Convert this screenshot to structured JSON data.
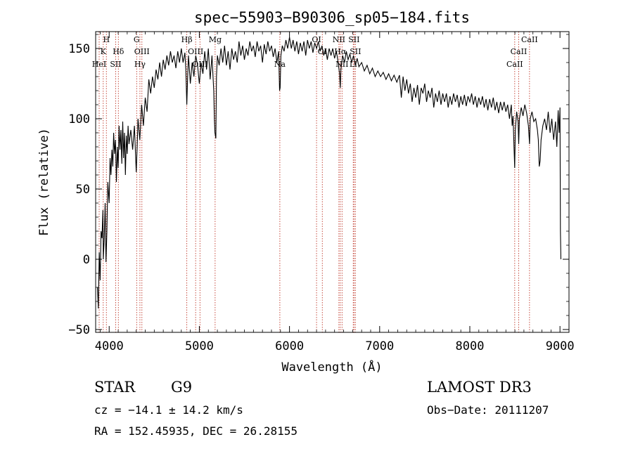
{
  "chart_data": {
    "type": "line",
    "title": "spec−55903−B90306_sp05−184.fits",
    "xlabel": "Wavelength (Å)",
    "ylabel": "Flux (relative)",
    "xlim": [
      3850,
      9100
    ],
    "ylim": [
      -52,
      162
    ],
    "xticks": [
      4000,
      5000,
      6000,
      7000,
      8000,
      9000
    ],
    "xtick_labels": [
      "4000",
      "5000",
      "6000",
      "7000",
      "8000",
      "9000"
    ],
    "yticks": [
      -50,
      0,
      50,
      100,
      150
    ],
    "ytick_labels": [
      "−50",
      "0",
      "50",
      "100",
      "150"
    ],
    "series": [
      {
        "name": "flux",
        "points": [
          [
            3870,
            -20
          ],
          [
            3880,
            -35
          ],
          [
            3890,
            5
          ],
          [
            3900,
            -15
          ],
          [
            3910,
            20
          ],
          [
            3920,
            15
          ],
          [
            3930,
            35
          ],
          [
            3935,
            0
          ],
          [
            3945,
            15
          ],
          [
            3955,
            40
          ],
          [
            3965,
            -2
          ],
          [
            3975,
            20
          ],
          [
            3985,
            55
          ],
          [
            4000,
            40
          ],
          [
            4010,
            72
          ],
          [
            4020,
            60
          ],
          [
            4030,
            78
          ],
          [
            4040,
            66
          ],
          [
            4050,
            90
          ],
          [
            4060,
            75
          ],
          [
            4070,
            85
          ],
          [
            4080,
            55
          ],
          [
            4090,
            80
          ],
          [
            4100,
            65
          ],
          [
            4110,
            95
          ],
          [
            4120,
            78
          ],
          [
            4130,
            92
          ],
          [
            4140,
            68
          ],
          [
            4150,
            98
          ],
          [
            4160,
            72
          ],
          [
            4170,
            90
          ],
          [
            4180,
            60
          ],
          [
            4190,
            88
          ],
          [
            4200,
            75
          ],
          [
            4210,
            95
          ],
          [
            4220,
            82
          ],
          [
            4240,
            92
          ],
          [
            4260,
            78
          ],
          [
            4280,
            95
          ],
          [
            4300,
            62
          ],
          [
            4310,
            80
          ],
          [
            4320,
            100
          ],
          [
            4340,
            85
          ],
          [
            4360,
            110
          ],
          [
            4380,
            95
          ],
          [
            4400,
            115
          ],
          [
            4420,
            105
          ],
          [
            4440,
            128
          ],
          [
            4460,
            118
          ],
          [
            4480,
            130
          ],
          [
            4500,
            122
          ],
          [
            4520,
            135
          ],
          [
            4540,
            128
          ],
          [
            4560,
            140
          ],
          [
            4580,
            130
          ],
          [
            4600,
            142
          ],
          [
            4620,
            135
          ],
          [
            4640,
            145
          ],
          [
            4660,
            138
          ],
          [
            4680,
            148
          ],
          [
            4700,
            140
          ],
          [
            4720,
            145
          ],
          [
            4740,
            136
          ],
          [
            4760,
            148
          ],
          [
            4780,
            140
          ],
          [
            4800,
            150
          ],
          [
            4820,
            140
          ],
          [
            4840,
            147
          ],
          [
            4850,
            135
          ],
          [
            4861,
            110
          ],
          [
            4870,
            130
          ],
          [
            4880,
            145
          ],
          [
            4900,
            125
          ],
          [
            4920,
            140
          ],
          [
            4940,
            130
          ],
          [
            4960,
            145
          ],
          [
            4980,
            138
          ],
          [
            5000,
            125
          ],
          [
            5020,
            140
          ],
          [
            5040,
            132
          ],
          [
            5060,
            148
          ],
          [
            5080,
            135
          ],
          [
            5100,
            150
          ],
          [
            5120,
            128
          ],
          [
            5140,
            145
          ],
          [
            5160,
            120
          ],
          [
            5167,
            100
          ],
          [
            5173,
            90
          ],
          [
            5183,
            86
          ],
          [
            5190,
            130
          ],
          [
            5200,
            145
          ],
          [
            5220,
            138
          ],
          [
            5240,
            150
          ],
          [
            5260,
            140
          ],
          [
            5280,
            152
          ],
          [
            5300,
            138
          ],
          [
            5320,
            148
          ],
          [
            5340,
            135
          ],
          [
            5360,
            150
          ],
          [
            5380,
            142
          ],
          [
            5400,
            148
          ],
          [
            5420,
            140
          ],
          [
            5440,
            155
          ],
          [
            5460,
            145
          ],
          [
            5480,
            152
          ],
          [
            5500,
            142
          ],
          [
            5520,
            150
          ],
          [
            5540,
            145
          ],
          [
            5560,
            155
          ],
          [
            5580,
            148
          ],
          [
            5600,
            152
          ],
          [
            5620,
            144
          ],
          [
            5640,
            155
          ],
          [
            5660,
            148
          ],
          [
            5680,
            152
          ],
          [
            5700,
            140
          ],
          [
            5720,
            153
          ],
          [
            5740,
            146
          ],
          [
            5760,
            155
          ],
          [
            5780,
            148
          ],
          [
            5800,
            152
          ],
          [
            5820,
            144
          ],
          [
            5840,
            150
          ],
          [
            5860,
            140
          ],
          [
            5880,
            148
          ],
          [
            5890,
            120
          ],
          [
            5896,
            122
          ],
          [
            5905,
            145
          ],
          [
            5920,
            152
          ],
          [
            5940,
            148
          ],
          [
            5960,
            156
          ],
          [
            5980,
            150
          ],
          [
            6000,
            158
          ],
          [
            6020,
            150
          ],
          [
            6040,
            156
          ],
          [
            6060,
            148
          ],
          [
            6080,
            155
          ],
          [
            6100,
            146
          ],
          [
            6120,
            154
          ],
          [
            6140,
            148
          ],
          [
            6160,
            155
          ],
          [
            6180,
            145
          ],
          [
            6200,
            156
          ],
          [
            6220,
            150
          ],
          [
            6240,
            155
          ],
          [
            6260,
            147
          ],
          [
            6280,
            154
          ],
          [
            6300,
            150
          ],
          [
            6320,
            155
          ],
          [
            6340,
            148
          ],
          [
            6360,
            152
          ],
          [
            6380,
            145
          ],
          [
            6400,
            150
          ],
          [
            6420,
            142
          ],
          [
            6440,
            150
          ],
          [
            6460,
            145
          ],
          [
            6480,
            150
          ],
          [
            6500,
            143
          ],
          [
            6520,
            148
          ],
          [
            6540,
            140
          ],
          [
            6555,
            132
          ],
          [
            6563,
            122
          ],
          [
            6570,
            135
          ],
          [
            6590,
            145
          ],
          [
            6610,
            140
          ],
          [
            6630,
            148
          ],
          [
            6650,
            142
          ],
          [
            6670,
            146
          ],
          [
            6690,
            140
          ],
          [
            6710,
            145
          ],
          [
            6730,
            138
          ],
          [
            6750,
            143
          ],
          [
            6770,
            137
          ],
          [
            6800,
            140
          ],
          [
            6830,
            134
          ],
          [
            6860,
            138
          ],
          [
            6890,
            132
          ],
          [
            6920,
            136
          ],
          [
            6950,
            130
          ],
          [
            6980,
            134
          ],
          [
            7010,
            130
          ],
          [
            7040,
            133
          ],
          [
            7070,
            128
          ],
          [
            7100,
            132
          ],
          [
            7130,
            127
          ],
          [
            7160,
            131
          ],
          [
            7190,
            126
          ],
          [
            7220,
            131
          ],
          [
            7240,
            115
          ],
          [
            7260,
            130
          ],
          [
            7280,
            120
          ],
          [
            7300,
            128
          ],
          [
            7320,
            118
          ],
          [
            7340,
            125
          ],
          [
            7360,
            112
          ],
          [
            7380,
            122
          ],
          [
            7400,
            115
          ],
          [
            7420,
            124
          ],
          [
            7440,
            110
          ],
          [
            7460,
            122
          ],
          [
            7480,
            118
          ],
          [
            7500,
            125
          ],
          [
            7520,
            112
          ],
          [
            7540,
            120
          ],
          [
            7560,
            115
          ],
          [
            7580,
            122
          ],
          [
            7600,
            108
          ],
          [
            7620,
            118
          ],
          [
            7640,
            112
          ],
          [
            7660,
            120
          ],
          [
            7680,
            110
          ],
          [
            7700,
            118
          ],
          [
            7720,
            112
          ],
          [
            7740,
            118
          ],
          [
            7760,
            108
          ],
          [
            7780,
            116
          ],
          [
            7800,
            110
          ],
          [
            7820,
            118
          ],
          [
            7840,
            112
          ],
          [
            7860,
            117
          ],
          [
            7880,
            108
          ],
          [
            7900,
            116
          ],
          [
            7920,
            110
          ],
          [
            7940,
            117
          ],
          [
            7960,
            109
          ],
          [
            7980,
            116
          ],
          [
            8000,
            112
          ],
          [
            8020,
            118
          ],
          [
            8040,
            110
          ],
          [
            8060,
            116
          ],
          [
            8080,
            108
          ],
          [
            8100,
            115
          ],
          [
            8120,
            110
          ],
          [
            8140,
            116
          ],
          [
            8160,
            108
          ],
          [
            8180,
            114
          ],
          [
            8200,
            106
          ],
          [
            8220,
            114
          ],
          [
            8240,
            108
          ],
          [
            8260,
            115
          ],
          [
            8280,
            106
          ],
          [
            8300,
            112
          ],
          [
            8320,
            104
          ],
          [
            8340,
            112
          ],
          [
            8360,
            106
          ],
          [
            8380,
            112
          ],
          [
            8400,
            105
          ],
          [
            8420,
            110
          ],
          [
            8440,
            100
          ],
          [
            8460,
            110
          ],
          [
            8470,
            95
          ],
          [
            8480,
            102
          ],
          [
            8490,
            80
          ],
          [
            8498,
            65
          ],
          [
            8505,
            92
          ],
          [
            8520,
            105
          ],
          [
            8535,
            98
          ],
          [
            8542,
            82
          ],
          [
            8550,
            100
          ],
          [
            8570,
            108
          ],
          [
            8590,
            102
          ],
          [
            8610,
            110
          ],
          [
            8630,
            104
          ],
          [
            8650,
            95
          ],
          [
            8662,
            82
          ],
          [
            8670,
            100
          ],
          [
            8690,
            105
          ],
          [
            8710,
            98
          ],
          [
            8730,
            100
          ],
          [
            8750,
            92
          ],
          [
            8760,
            85
          ],
          [
            8770,
            66
          ],
          [
            8780,
            70
          ],
          [
            8790,
            85
          ],
          [
            8810,
            95
          ],
          [
            8830,
            100
          ],
          [
            8850,
            92
          ],
          [
            8870,
            105
          ],
          [
            8890,
            90
          ],
          [
            8910,
            100
          ],
          [
            8930,
            85
          ],
          [
            8950,
            98
          ],
          [
            8965,
            80
          ],
          [
            8980,
            106
          ],
          [
            8990,
            90
          ],
          [
            9000,
            108
          ],
          [
            9005,
            20
          ],
          [
            9010,
            0
          ]
        ]
      }
    ],
    "line_markers": [
      {
        "wavelength": 3934,
        "label": "K"
      },
      {
        "wavelength": 3969,
        "label": "H"
      },
      {
        "wavelength": 3889,
        "label": "HeI"
      },
      {
        "wavelength": 4072,
        "label": "SII"
      },
      {
        "wavelength": 4102,
        "label": "Hδ"
      },
      {
        "wavelength": 4305,
        "label": "G"
      },
      {
        "wavelength": 4363,
        "label": "OIII"
      },
      {
        "wavelength": 4341,
        "label": "Hγ"
      },
      {
        "wavelength": 4861,
        "label": "Hβ"
      },
      {
        "wavelength": 4959,
        "label": "OIII"
      },
      {
        "wavelength": 5007,
        "label": "OIII"
      },
      {
        "wavelength": 5175,
        "label": "Mg"
      },
      {
        "wavelength": 5893,
        "label": "Na"
      },
      {
        "wavelength": 6300,
        "label": "OI"
      },
      {
        "wavelength": 6364,
        "label": "OI"
      },
      {
        "wavelength": 6548,
        "label": "NII"
      },
      {
        "wavelength": 6563,
        "label": "Hα"
      },
      {
        "wavelength": 6583,
        "label": "NII"
      },
      {
        "wavelength": 6707,
        "label": "Li"
      },
      {
        "wavelength": 6716,
        "label": "SII"
      },
      {
        "wavelength": 6731,
        "label": "SII"
      },
      {
        "wavelength": 8498,
        "label": "CaII"
      },
      {
        "wavelength": 8542,
        "label": "CaII"
      },
      {
        "wavelength": 8662,
        "label": "CaII"
      }
    ]
  },
  "footer": {
    "object_class": "STAR",
    "subclass": "G9",
    "survey": "LAMOST DR3",
    "cz": "cz = −14.1 ± 14.2 km/s",
    "obs_date": "Obs−Date: 20111207",
    "coords": "RA = 152.45935, DEC =  26.28155"
  }
}
